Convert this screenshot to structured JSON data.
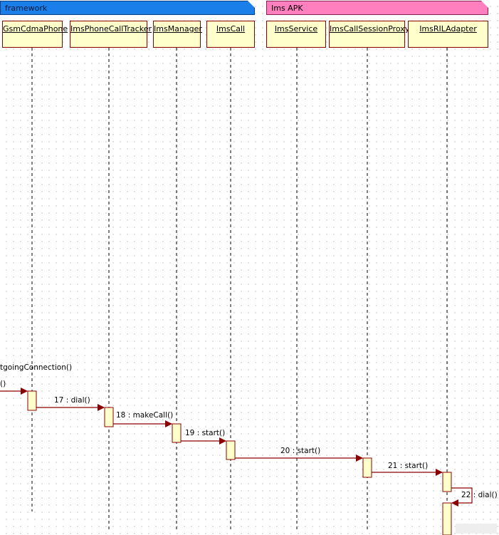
{
  "packages": {
    "framework": "framework",
    "ims_apk": "Ims APK"
  },
  "lifelines": [
    {
      "name": "GsmCdmaPhone"
    },
    {
      "name": "ImsPhoneCallTracker"
    },
    {
      "name": "ImsManager"
    },
    {
      "name": "ImsCall"
    },
    {
      "name": "ImsService"
    },
    {
      "name": "ImsCallSessionProxy"
    },
    {
      "name": "ImsRILAdapter"
    }
  ],
  "incoming": {
    "label": "tgoingConnection()",
    "arrow_label": "()"
  },
  "messages": [
    {
      "label": "17 : dial()"
    },
    {
      "label": "18 : makeCall()"
    },
    {
      "label": "19 : start()"
    },
    {
      "label": "20 : start()"
    },
    {
      "label": "21 : start()"
    },
    {
      "label": "22 : dial()"
    }
  ],
  "colors": {
    "framework_fill": "#1a7fe8",
    "ims_fill": "#ff7fbf",
    "lifeline_fill": "#ffffcc",
    "arrow": "#8b0000"
  }
}
